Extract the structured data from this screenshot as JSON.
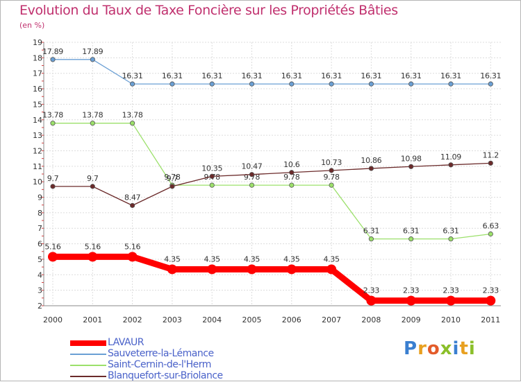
{
  "title": "Evolution du Taux de Taxe Foncière sur les Propriétés Bâties",
  "unit_label": "(en %)",
  "logo": {
    "text": "Proxiti",
    "letters": [
      "P",
      "r",
      "o",
      "x",
      "i",
      "t",
      "i"
    ],
    "colors": [
      "#3a7fd0",
      "#e8a020",
      "#e35b2a",
      "#8bbf2a",
      "#3a7fd0",
      "#e8a020",
      "#8bbf2a"
    ]
  },
  "chart_data": {
    "type": "line",
    "title": "Evolution du Taux de Taxe Foncière sur les Propriétés Bâties",
    "ylabel": "(en %)",
    "xlabel": "",
    "x": [
      2000,
      2001,
      2002,
      2003,
      2004,
      2005,
      2006,
      2007,
      2008,
      2009,
      2010,
      2011
    ],
    "ylim": [
      2,
      19
    ],
    "yticks": [
      2,
      3,
      4,
      5,
      6,
      7,
      8,
      9,
      10,
      11,
      12,
      13,
      14,
      15,
      16,
      17,
      18,
      19
    ],
    "grid": true,
    "legend_position": "bottom-left",
    "series": [
      {
        "name": "LAVAUR",
        "color": "#ff0000",
        "values": [
          5.16,
          5.16,
          5.16,
          4.35,
          4.35,
          4.35,
          4.35,
          4.35,
          2.33,
          2.33,
          2.33,
          2.33
        ],
        "labels": [
          "5.16",
          "5.16",
          "5.16",
          "4.35",
          "4.35",
          "4.35",
          "4.35",
          "4.35",
          "2.33",
          "2.33",
          "2.33",
          "2.33"
        ]
      },
      {
        "name": "Sauveterre-la-Lémance",
        "color": "#6a9fd4",
        "values": [
          17.89,
          17.89,
          16.31,
          16.31,
          16.31,
          16.31,
          16.31,
          16.31,
          16.31,
          16.31,
          16.31,
          16.31
        ],
        "labels": [
          "17.89",
          "17.89",
          "16.31",
          "16.31",
          "16.31",
          "16.31",
          "16.31",
          "16.31",
          "16.31",
          "16.31",
          "16.31",
          "16.31"
        ]
      },
      {
        "name": "Saint-Cernin-de-l'Herm",
        "color": "#9be06a",
        "values": [
          13.78,
          13.78,
          13.78,
          9.78,
          9.78,
          9.78,
          9.78,
          9.78,
          6.31,
          6.31,
          6.31,
          6.63
        ],
        "labels": [
          "13.78",
          "13.78",
          "13.78",
          "9.78",
          "9.78",
          "9.78",
          "9.78",
          "9.78",
          "6.31",
          "6.31",
          "6.31",
          "6.63"
        ]
      },
      {
        "name": "Blanquefort-sur-Briolance",
        "color": "#6b2a2a",
        "values": [
          9.7,
          9.7,
          8.47,
          9.7,
          10.35,
          10.47,
          10.6,
          10.73,
          10.86,
          10.98,
          11.09,
          11.2
        ],
        "labels": [
          "9.7",
          "9.7",
          "8.47",
          "9.7",
          "10.35",
          "10.47",
          "10.6",
          "10.73",
          "10.86",
          "10.98",
          "11.09",
          "11.2"
        ]
      }
    ]
  }
}
